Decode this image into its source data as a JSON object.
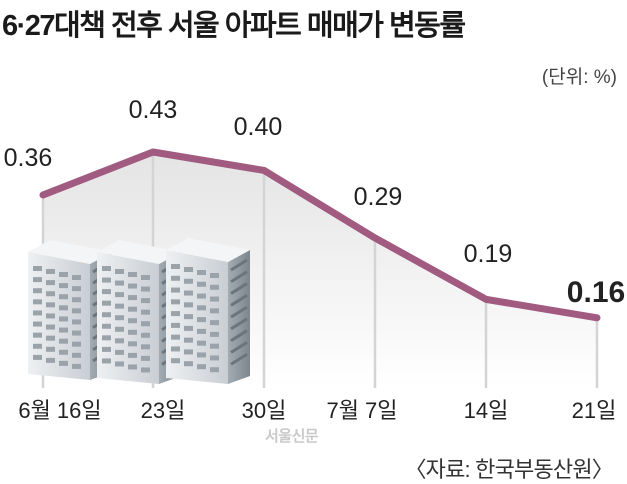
{
  "chart_data": {
    "type": "line",
    "title": "6·27대책 전후 서울 아파트 매매가 변동률",
    "unit": "(단위: %)",
    "categories": [
      "6월 16일",
      "23일",
      "30일",
      "7월 7일",
      "14일",
      "21일"
    ],
    "values": [
      0.36,
      0.43,
      0.4,
      0.29,
      0.19,
      0.16
    ],
    "value_labels": [
      "0.36",
      "0.43",
      "0.40",
      "0.29",
      "0.19",
      "0.16"
    ],
    "highlight_index": 5,
    "source": "〈자료: 한국부동산원〉",
    "watermark": "서울신문"
  },
  "colors": {
    "line": "#a15a80",
    "drop_lines": "#d4d4d4",
    "area_top": "#e9e9e9",
    "building_light": "#d7dce0",
    "building_dark": "#8f979f"
  }
}
